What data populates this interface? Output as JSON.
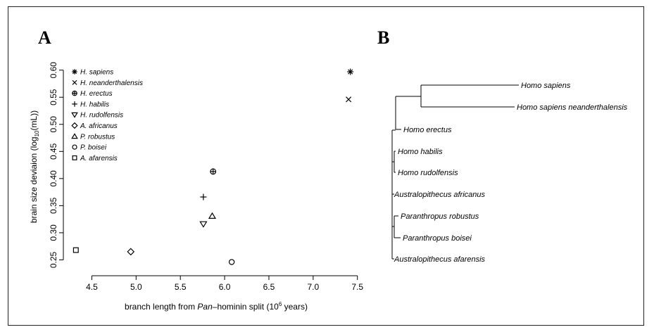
{
  "panels": {
    "a": "A",
    "b": "B"
  },
  "chart_data": [
    {
      "type": "scatter",
      "title": "",
      "xlabel": {
        "before": "branch length from ",
        "italic": "Pan",
        "after": "–hominin split (10",
        "sup": "6",
        "end": " years)"
      },
      "ylabel": {
        "before": "brain size deviaion (log",
        "sub": "10",
        "after": "(mL))"
      },
      "xlim": [
        4.25,
        7.55
      ],
      "ylim": [
        0.235,
        0.61
      ],
      "xticks": [
        "4.5",
        "5.0",
        "5.5",
        "6.0",
        "6.5",
        "7.0",
        "7.5"
      ],
      "yticks": [
        "0.25",
        "0.30",
        "0.35",
        "0.40",
        "0.45",
        "0.50",
        "0.55",
        "0.60"
      ],
      "legend_position": "top-left",
      "series": [
        {
          "name": "H. sapiens",
          "symbol": "asterisk",
          "x": 7.42,
          "y": 0.597
        },
        {
          "name": "H. neanderthalensis",
          "symbol": "cross",
          "x": 7.4,
          "y": 0.546
        },
        {
          "name": "H. erectus",
          "symbol": "circle-plus",
          "x": 5.87,
          "y": 0.413
        },
        {
          "name": "H. habilis",
          "symbol": "plus",
          "x": 5.76,
          "y": 0.366
        },
        {
          "name": "H. rudolfensis",
          "symbol": "triangle-down",
          "x": 5.76,
          "y": 0.316
        },
        {
          "name": "A. africanus",
          "symbol": "diamond",
          "x": 4.94,
          "y": 0.265
        },
        {
          "name": "P. robustus",
          "symbol": "triangle-up",
          "x": 5.86,
          "y": 0.331
        },
        {
          "name": "P. boisei",
          "symbol": "circle",
          "x": 6.08,
          "y": 0.246
        },
        {
          "name": "A. afarensis",
          "symbol": "square",
          "x": 4.32,
          "y": 0.268
        }
      ]
    },
    {
      "type": "tree",
      "leaves": [
        "Homo sapiens",
        "Homo sapiens neanderthalensis",
        "Homo erectus",
        "Homo habilis",
        "Homo rudolfensis",
        "Australopithecus africanus",
        "Paranthropus robustus",
        "Paranthropus boisei",
        "Australopithecus afarensis"
      ]
    }
  ]
}
